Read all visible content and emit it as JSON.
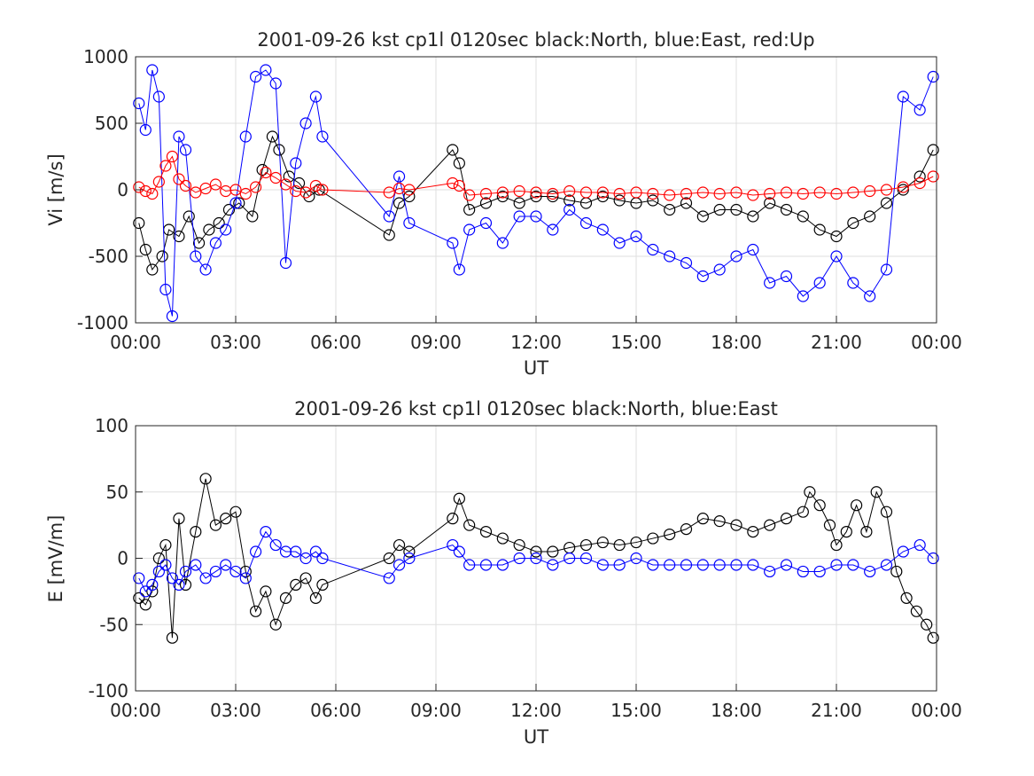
{
  "chart_data": [
    {
      "type": "scatter",
      "title": "2001-09-26 kst cp1l 0120sec black:North, blue:East, red:Up",
      "xlabel": "UT",
      "ylabel": "Vi [m/s]",
      "xlim": [
        0,
        24
      ],
      "ylim": [
        -1000,
        1000
      ],
      "grid": true,
      "x_tick_labels": [
        "00:00",
        "03:00",
        "06:00",
        "09:00",
        "12:00",
        "15:00",
        "18:00",
        "21:00",
        "00:00"
      ],
      "y_tick_labels": [
        "1000",
        "500",
        "0",
        "-500",
        "-1000"
      ],
      "y_ticks": [
        1000,
        500,
        0,
        -500,
        -1000
      ],
      "series": [
        {
          "name": "North",
          "color": "#000000",
          "x": [
            0.1,
            0.3,
            0.5,
            0.8,
            1.0,
            1.3,
            1.6,
            1.9,
            2.2,
            2.5,
            2.8,
            3.1,
            3.5,
            3.8,
            4.1,
            4.3,
            4.6,
            4.9,
            5.2,
            5.5,
            7.6,
            7.9,
            8.2,
            9.5,
            9.7,
            10.0,
            10.5,
            11.0,
            11.5,
            12.0,
            12.5,
            13.0,
            13.5,
            14.0,
            14.5,
            15.0,
            15.5,
            16.0,
            16.5,
            17.0,
            17.5,
            18.0,
            18.5,
            19.0,
            19.5,
            20.0,
            20.5,
            21.0,
            21.5,
            22.0,
            22.5,
            23.0,
            23.5,
            23.9
          ],
          "y": [
            -250,
            -450,
            -600,
            -500,
            -300,
            -350,
            -200,
            -400,
            -300,
            -250,
            -150,
            -100,
            -200,
            150,
            400,
            300,
            100,
            50,
            -50,
            0,
            -340,
            -100,
            -50,
            300,
            200,
            -150,
            -100,
            -50,
            -100,
            -50,
            -50,
            -80,
            -100,
            -50,
            -80,
            -100,
            -80,
            -150,
            -100,
            -200,
            -150,
            -150,
            -200,
            -100,
            -150,
            -200,
            -300,
            -350,
            -250,
            -200,
            -100,
            0,
            100,
            300
          ]
        },
        {
          "name": "East",
          "color": "#0000ff",
          "x": [
            0.1,
            0.3,
            0.5,
            0.7,
            0.9,
            1.1,
            1.3,
            1.5,
            1.8,
            2.1,
            2.4,
            2.7,
            3.0,
            3.3,
            3.6,
            3.9,
            4.2,
            4.5,
            4.8,
            5.1,
            5.4,
            5.6,
            7.6,
            7.9,
            8.2,
            9.5,
            9.7,
            10.0,
            10.5,
            11.0,
            11.5,
            12.0,
            12.5,
            13.0,
            13.5,
            14.0,
            14.5,
            15.0,
            15.5,
            16.0,
            16.5,
            17.0,
            17.5,
            18.0,
            18.5,
            19.0,
            19.5,
            20.0,
            20.5,
            21.0,
            21.5,
            22.0,
            22.5,
            23.0,
            23.5,
            23.9
          ],
          "y": [
            650,
            450,
            900,
            700,
            -750,
            -950,
            400,
            300,
            -500,
            -600,
            -400,
            -300,
            -100,
            400,
            850,
            900,
            800,
            -550,
            200,
            500,
            700,
            400,
            -200,
            100,
            -250,
            -400,
            -600,
            -300,
            -250,
            -400,
            -200,
            -200,
            -300,
            -150,
            -250,
            -300,
            -400,
            -350,
            -450,
            -500,
            -550,
            -650,
            -600,
            -500,
            -450,
            -700,
            -650,
            -800,
            -700,
            -500,
            -700,
            -800,
            -600,
            700,
            600,
            850
          ]
        },
        {
          "name": "Up",
          "color": "#ff0000",
          "x": [
            0.1,
            0.3,
            0.5,
            0.7,
            0.9,
            1.1,
            1.3,
            1.5,
            1.8,
            2.1,
            2.4,
            2.7,
            3.0,
            3.3,
            3.6,
            3.9,
            4.2,
            4.5,
            4.8,
            5.1,
            5.4,
            5.6,
            7.6,
            7.9,
            8.2,
            9.5,
            9.7,
            10.0,
            10.5,
            11.0,
            11.5,
            12.0,
            12.5,
            13.0,
            13.5,
            14.0,
            14.5,
            15.0,
            15.5,
            16.0,
            16.5,
            17.0,
            17.5,
            18.0,
            18.5,
            19.0,
            19.5,
            20.0,
            20.5,
            21.0,
            21.5,
            22.0,
            22.5,
            23.0,
            23.5,
            23.9
          ],
          "y": [
            20,
            -10,
            -30,
            60,
            180,
            250,
            80,
            30,
            -20,
            10,
            40,
            -10,
            0,
            -30,
            20,
            130,
            90,
            40,
            -10,
            -20,
            30,
            0,
            -20,
            10,
            0,
            50,
            30,
            -40,
            -30,
            -20,
            -10,
            -20,
            -30,
            -10,
            -20,
            -20,
            -30,
            -20,
            -30,
            -40,
            -30,
            -20,
            -30,
            -20,
            -40,
            -30,
            -20,
            -30,
            -20,
            -30,
            -20,
            -10,
            0,
            20,
            50,
            100
          ]
        }
      ]
    },
    {
      "type": "scatter",
      "title": "2001-09-26 kst cp1l 0120sec black:North, blue:East",
      "xlabel": "UT",
      "ylabel": "E [mV/m]",
      "xlim": [
        0,
        24
      ],
      "ylim": [
        -100,
        100
      ],
      "grid": true,
      "x_tick_labels": [
        "00:00",
        "03:00",
        "06:00",
        "09:00",
        "12:00",
        "15:00",
        "18:00",
        "21:00",
        "00:00"
      ],
      "y_tick_labels": [
        "100",
        "50",
        "0",
        "-50",
        "-100"
      ],
      "y_ticks": [
        100,
        50,
        0,
        -50,
        -100
      ],
      "series": [
        {
          "name": "North",
          "color": "#000000",
          "x": [
            0.1,
            0.3,
            0.5,
            0.7,
            0.9,
            1.1,
            1.3,
            1.5,
            1.8,
            2.1,
            2.4,
            2.7,
            3.0,
            3.3,
            3.6,
            3.9,
            4.2,
            4.5,
            4.8,
            5.1,
            5.4,
            5.6,
            7.6,
            7.9,
            8.2,
            9.5,
            9.7,
            10.0,
            10.5,
            11.0,
            11.5,
            12.0,
            12.5,
            13.0,
            13.5,
            14.0,
            14.5,
            15.0,
            15.5,
            16.0,
            16.5,
            17.0,
            17.5,
            18.0,
            18.5,
            19.0,
            19.5,
            20.0,
            20.2,
            20.5,
            20.8,
            21.0,
            21.3,
            21.6,
            21.9,
            22.2,
            22.5,
            22.8,
            23.1,
            23.4,
            23.7,
            23.9
          ],
          "y": [
            -30,
            -35,
            -25,
            0,
            10,
            -60,
            30,
            -20,
            20,
            60,
            25,
            30,
            35,
            -10,
            -40,
            -25,
            -50,
            -30,
            -20,
            -15,
            -30,
            -20,
            0,
            10,
            5,
            30,
            45,
            25,
            20,
            15,
            10,
            5,
            5,
            8,
            10,
            12,
            10,
            12,
            15,
            18,
            22,
            30,
            28,
            25,
            20,
            25,
            30,
            35,
            50,
            40,
            25,
            10,
            20,
            40,
            20,
            50,
            35,
            -10,
            -30,
            -40,
            -50,
            -60
          ]
        },
        {
          "name": "East",
          "color": "#0000ff",
          "x": [
            0.1,
            0.3,
            0.5,
            0.7,
            0.9,
            1.1,
            1.3,
            1.5,
            1.8,
            2.1,
            2.4,
            2.7,
            3.0,
            3.3,
            3.6,
            3.9,
            4.2,
            4.5,
            4.8,
            5.1,
            5.4,
            5.6,
            7.6,
            7.9,
            8.2,
            9.5,
            9.7,
            10.0,
            10.5,
            11.0,
            11.5,
            12.0,
            12.5,
            13.0,
            13.5,
            14.0,
            14.5,
            15.0,
            15.5,
            16.0,
            16.5,
            17.0,
            17.5,
            18.0,
            18.5,
            19.0,
            19.5,
            20.0,
            20.5,
            21.0,
            21.5,
            22.0,
            22.5,
            23.0,
            23.5,
            23.9
          ],
          "y": [
            -15,
            -25,
            -20,
            -10,
            -5,
            -15,
            -20,
            -10,
            -5,
            -15,
            -10,
            -5,
            -10,
            -15,
            5,
            20,
            10,
            5,
            5,
            0,
            5,
            0,
            -15,
            -5,
            0,
            10,
            5,
            -5,
            -5,
            -5,
            0,
            0,
            -5,
            0,
            0,
            -5,
            -5,
            0,
            -5,
            -5,
            -5,
            -5,
            -5,
            -5,
            -5,
            -10,
            -5,
            -10,
            -10,
            -5,
            -5,
            -10,
            -5,
            5,
            10,
            0
          ]
        }
      ]
    }
  ]
}
